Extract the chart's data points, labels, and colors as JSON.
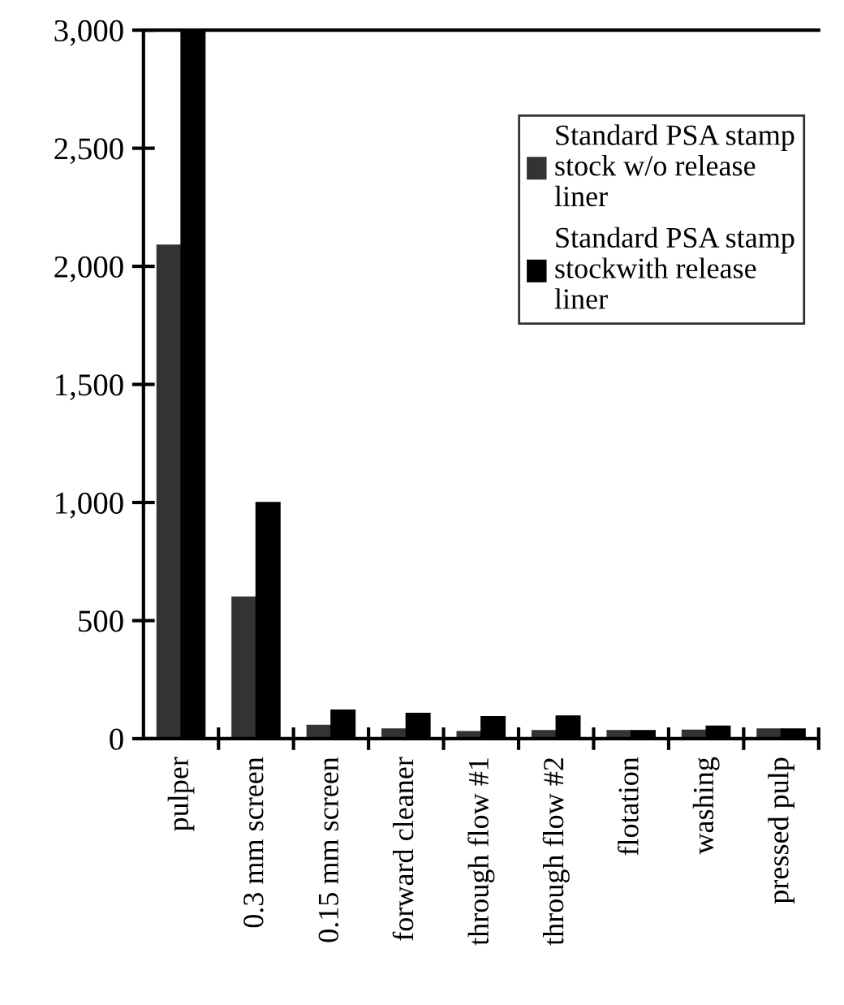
{
  "chart_data": {
    "type": "bar",
    "categories": [
      "pulper",
      "0.3 mm screen",
      "0.15 mm screen",
      "forward cleaner",
      "through flow #1",
      "through flow #2",
      "flotation",
      "washing",
      "pressed pulp"
    ],
    "series": [
      {
        "name": "Standard PSA stamp stock w/o release liner",
        "color": "#333333",
        "values": [
          2090,
          600,
          57,
          41,
          30,
          34,
          34,
          36,
          41
        ]
      },
      {
        "name": "Standard PSA stamp stockwith release liner",
        "color": "#000000",
        "values": [
          3000,
          1000,
          121,
          107,
          94,
          96,
          34,
          53,
          41
        ]
      }
    ],
    "ylim": [
      0,
      3000
    ],
    "yticks": [
      {
        "value": 0,
        "label": "0"
      },
      {
        "value": 500,
        "label": "500"
      },
      {
        "value": 1000,
        "label": "1,000"
      },
      {
        "value": 1500,
        "label": "1,500"
      },
      {
        "value": 2000,
        "label": "2,000"
      },
      {
        "value": 2500,
        "label": "2,500"
      },
      {
        "value": 3000,
        "label": "3,000"
      }
    ],
    "grid": false,
    "legend": "top right"
  }
}
